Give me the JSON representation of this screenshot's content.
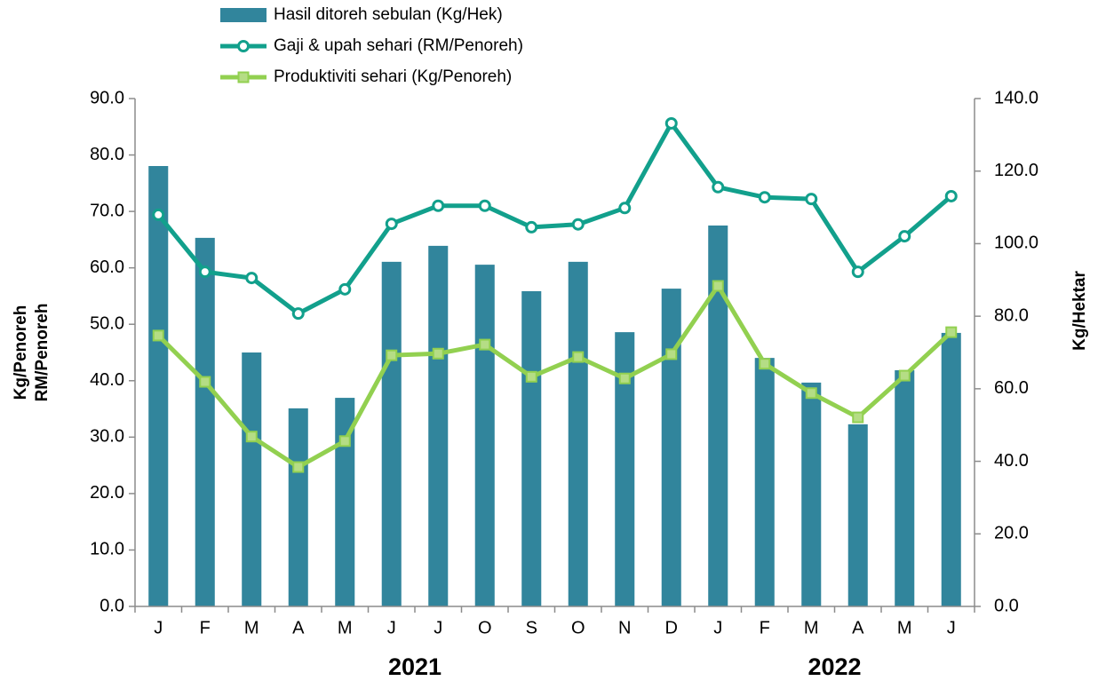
{
  "chart_data": {
    "type": "bar-line",
    "categories": [
      "J",
      "F",
      "M",
      "A",
      "M",
      "J",
      "J",
      "O",
      "S",
      "O",
      "N",
      "D",
      "J",
      "F",
      "M",
      "A",
      "M",
      "J"
    ],
    "groups": [
      {
        "label": "2021",
        "start": 0,
        "end": 11
      },
      {
        "label": "2022",
        "start": 12,
        "end": 17
      }
    ],
    "series": [
      {
        "name": "Hasil ditoreh sebulan (Kg/Hek)",
        "kind": "bar",
        "axis": "y2",
        "color": "#31859c",
        "values": [
          121.4,
          101.6,
          70.0,
          54.6,
          57.5,
          95.0,
          99.4,
          94.2,
          86.9,
          95.0,
          75.6,
          87.6,
          105.0,
          68.5,
          61.7,
          50.2,
          65.1,
          75.4
        ]
      },
      {
        "name": "Gaji & upah sehari (RM/Penoreh)",
        "kind": "line",
        "marker": "circle",
        "color": "#12a08c",
        "values": [
          69.4,
          59.3,
          58.2,
          51.9,
          56.2,
          67.8,
          71.0,
          71.0,
          67.2,
          67.7,
          70.6,
          85.6,
          74.3,
          72.5,
          72.2,
          59.3,
          65.6,
          72.7
        ]
      },
      {
        "name": "Produktiviti sehari (Kg/Penoreh)",
        "kind": "line",
        "marker": "square",
        "color": "#92d050",
        "values": [
          48.0,
          39.8,
          30.1,
          24.7,
          29.3,
          44.5,
          44.8,
          46.4,
          40.7,
          44.2,
          40.4,
          44.7,
          56.8,
          43.0,
          37.8,
          33.5,
          40.9,
          48.6
        ]
      }
    ],
    "y_label": [
      "Kg/Penoreh",
      "RM/Penoreh"
    ],
    "y2_label": "Kg/Hektar",
    "ylim": [
      0,
      90
    ],
    "yticks": [
      {
        "value": 0,
        "label": "0.0"
      },
      {
        "value": 10,
        "label": "10.0"
      },
      {
        "value": 20,
        "label": "20.0"
      },
      {
        "value": 30,
        "label": "30.0"
      },
      {
        "value": 40,
        "label": "40.0"
      },
      {
        "value": 50,
        "label": "50.0"
      },
      {
        "value": 60,
        "label": "60.0"
      },
      {
        "value": 70,
        "label": "70.0"
      },
      {
        "value": 80,
        "label": "80.0"
      },
      {
        "value": 90,
        "label": "90.0"
      }
    ],
    "y2lim": [
      0,
      140
    ],
    "y2ticks": [
      {
        "value": 0,
        "label": "0.0"
      },
      {
        "value": 20,
        "label": "20.0"
      },
      {
        "value": 40,
        "label": "40.0"
      },
      {
        "value": 60,
        "label": "60.0"
      },
      {
        "value": 80,
        "label": "80.0"
      },
      {
        "value": 100,
        "label": "100.0"
      },
      {
        "value": 120,
        "label": "120.0"
      },
      {
        "value": 140,
        "label": "140.0"
      }
    ],
    "grid": false,
    "legend": "top"
  }
}
